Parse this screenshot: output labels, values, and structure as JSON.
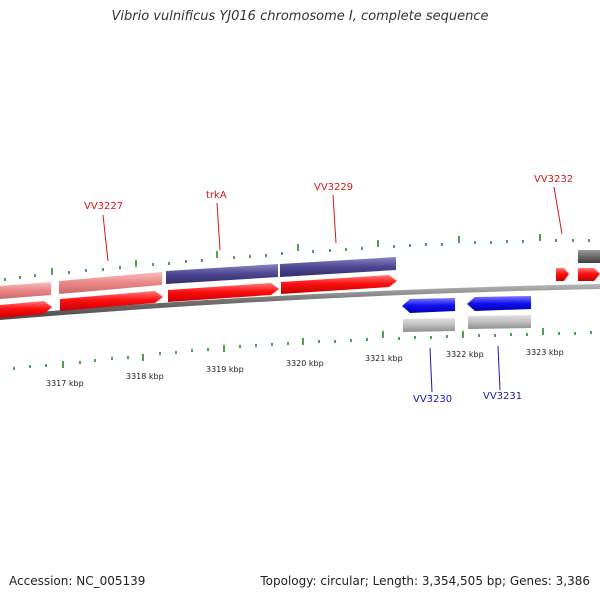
{
  "title": "Vibrio vulnificus YJ016 chromosome I, complete sequence",
  "footer": {
    "accession": "Accession: NC_005139",
    "summary": "Topology: circular; Length: 3,354,505 bp; Genes: 3,386"
  },
  "colors": {
    "forward_red": "#ef0000",
    "forward_pink": "#ec8686",
    "forward_purple": "#4d4590",
    "reverse_blue": "#0b0bf0",
    "reverse_gray": "#bdbdbd",
    "dark_gray": "#707070",
    "backbone": "#808080",
    "tick_green": "#1f8a1f",
    "label_red": "#d41818",
    "label_blue": "#1a1ab0",
    "axis_text": "#222222"
  },
  "scale": {
    "unit": "kbp",
    "labels": [
      "3317 kbp",
      "3318 kbp",
      "3319 kbp",
      "3320 kbp",
      "3321 kbp",
      "3322 kbp",
      "3323 kbp"
    ]
  },
  "gene_labels": [
    {
      "id": "VV3227",
      "strand": "forward"
    },
    {
      "id": "trkA",
      "strand": "forward"
    },
    {
      "id": "VV3229",
      "strand": "forward"
    },
    {
      "id": "VV3232",
      "strand": "forward"
    },
    {
      "id": "VV3230",
      "strand": "reverse"
    },
    {
      "id": "VV3231",
      "strand": "reverse"
    }
  ]
}
